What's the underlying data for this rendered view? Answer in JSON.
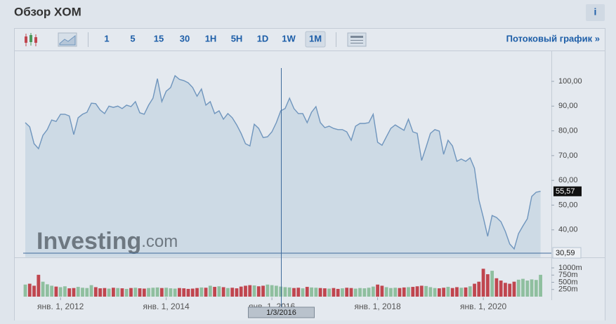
{
  "header": {
    "title": "Обзор XOM",
    "info": "i"
  },
  "toolbar": {
    "intervals": [
      "1",
      "5",
      "15",
      "30",
      "1H",
      "5H",
      "1D",
      "1W",
      "1M"
    ],
    "stream_link": "Потоковый график »"
  },
  "chart_data": {
    "type": "line",
    "categories": [
      null,
      null,
      null,
      null,
      null,
      null,
      null,
      null,
      "янв. 1, 2012",
      null,
      null,
      null,
      null,
      null,
      null,
      null,
      null,
      null,
      null,
      null,
      null,
      null,
      null,
      null,
      null,
      null,
      null,
      null,
      null,
      null,
      null,
      null,
      "янв. 1, 2014",
      null,
      null,
      null,
      null,
      null,
      null,
      null,
      null,
      null,
      null,
      null,
      null,
      null,
      null,
      null,
      null,
      null,
      null,
      null,
      null,
      null,
      null,
      null,
      "янв. 1, 2016",
      null,
      null,
      null,
      null,
      null,
      null,
      null,
      null,
      null,
      null,
      null,
      null,
      null,
      null,
      null,
      null,
      null,
      null,
      null,
      null,
      null,
      null,
      null,
      "янв. 1, 2018",
      null,
      null,
      null,
      null,
      null,
      null,
      null,
      null,
      null,
      null,
      null,
      null,
      null,
      null,
      null,
      null,
      null,
      null,
      null,
      null,
      null,
      null,
      null,
      "янв. 1, 2020",
      null,
      null,
      null,
      null,
      null,
      null,
      null,
      null,
      null,
      null,
      null,
      null,
      null
    ],
    "values": [
      83.3,
      81.6,
      74.8,
      72.8,
      78.2,
      80.5,
      84.4,
      83.8,
      86.7,
      86.7,
      86.0,
      78.5,
      85.3,
      86.7,
      87.5,
      91.2,
      91.0,
      88.4,
      87.0,
      90.0,
      89.5,
      90.0,
      89.0,
      90.4,
      89.8,
      91.8,
      87.3,
      86.7,
      90.4,
      93.2,
      101.1,
      91.8,
      96.0,
      97.5,
      102.3,
      100.8,
      100.3,
      99.4,
      97.5,
      94.0,
      96.9,
      90.4,
      91.8,
      87.0,
      88.1,
      84.7,
      87.0,
      85.3,
      82.4,
      79.0,
      74.8,
      73.9,
      82.7,
      81.0,
      77.3,
      77.6,
      79.6,
      83.3,
      88.1,
      89.0,
      93.2,
      89.0,
      87.0,
      87.0,
      83.3,
      87.5,
      89.8,
      83.3,
      81.3,
      81.9,
      81.0,
      80.5,
      80.5,
      79.6,
      76.2,
      81.9,
      83.0,
      83.0,
      83.3,
      86.7,
      75.4,
      74.2,
      77.6,
      81.0,
      82.4,
      81.3,
      80.2,
      84.7,
      79.6,
      79.0,
      68.0,
      73.4,
      79.0,
      80.5,
      79.9,
      70.5,
      76.2,
      73.9,
      67.7,
      68.6,
      67.7,
      69.1,
      64.9,
      52.1,
      45.0,
      37.4,
      45.8,
      45.0,
      43.3,
      39.4,
      34.3,
      32.3,
      38.5,
      41.6,
      44.5,
      53.5,
      55.2,
      55.57
    ],
    "color": "#6f95bd",
    "area_color": "#c6d4e2",
    "ylim": [
      29,
      105
    ],
    "yticks": [
      {
        "value": 40,
        "label": "40,00"
      },
      {
        "value": 50,
        "label": "50,00"
      },
      {
        "value": 60,
        "label": "60,00"
      },
      {
        "value": 70,
        "label": "70,00"
      },
      {
        "value": 80,
        "label": "80,00"
      },
      {
        "value": 90,
        "label": "90,00"
      },
      {
        "value": 100,
        "label": "100,00"
      }
    ],
    "last_label": "55,57",
    "crosshair": {
      "x_label": "1/3/2016",
      "y": {
        "value": 30.59,
        "label": "30,59"
      }
    },
    "watermark": {
      "brand": "Investing",
      "suffix": ".com"
    },
    "volume": {
      "values": [
        420,
        450,
        380,
        760,
        520,
        430,
        380,
        350,
        330,
        360,
        290,
        300,
        340,
        310,
        300,
        400,
        330,
        290,
        300,
        280,
        310,
        300,
        290,
        270,
        300,
        310,
        290,
        280,
        300,
        310,
        320,
        300,
        310,
        290,
        280,
        300,
        290,
        270,
        280,
        300,
        320,
        310,
        380,
        340,
        360,
        330,
        300,
        310,
        290,
        350,
        380,
        400,
        390,
        360,
        380,
        420,
        400,
        380,
        350,
        330,
        320,
        300,
        310,
        290,
        340,
        320,
        310,
        300,
        290,
        280,
        300,
        270,
        290,
        310,
        300,
        280,
        300,
        290,
        310,
        350,
        420,
        380,
        330,
        300,
        310,
        300,
        320,
        330,
        340,
        360,
        380,
        370,
        330,
        300,
        290,
        310,
        340,
        300,
        330,
        310,
        320,
        360,
        450,
        520,
        970,
        780,
        900,
        640,
        560,
        480,
        450,
        520,
        590,
        620,
        560,
        600,
        580,
        760
      ],
      "up_color": "#8fbf9f",
      "down_color": "#c0464f",
      "ylim": [
        0,
        1150
      ],
      "yticks": [
        {
          "value": 250,
          "label": "250m"
        },
        {
          "value": 500,
          "label": "500m"
        },
        {
          "value": 750,
          "label": "750m"
        },
        {
          "value": 1000,
          "label": "1000m"
        }
      ]
    }
  }
}
